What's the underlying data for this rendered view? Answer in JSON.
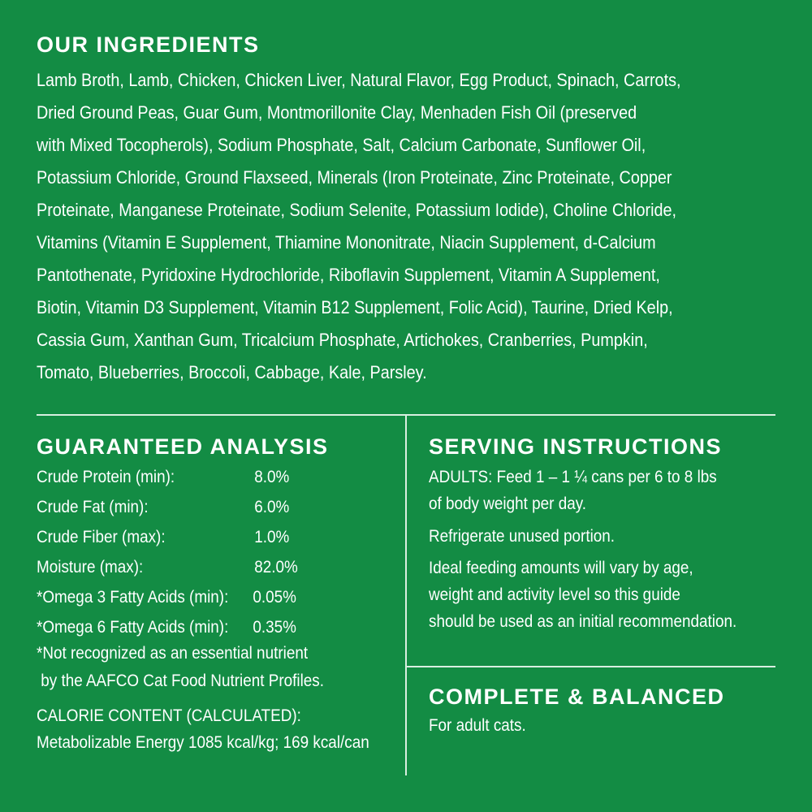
{
  "ingredients": {
    "title": "OUR INGREDIENTS",
    "lines": [
      "Lamb Broth, Lamb, Chicken, Chicken Liver, Natural Flavor, Egg Product, Spinach, Carrots,",
      "Dried Ground Peas, Guar Gum, Montmorillonite Clay, Menhaden Fish Oil (preserved",
      "with Mixed Tocopherols), Sodium Phosphate, Salt, Calcium Carbonate, Sunflower Oil,",
      "Potassium Chloride, Ground Flaxseed, Minerals (Iron Proteinate, Zinc Proteinate, Copper",
      "Proteinate, Manganese Proteinate, Sodium Selenite, Potassium Iodide), Choline Chloride,",
      "Vitamins (Vitamin E Supplement, Thiamine Mononitrate, Niacin Supplement, d-Calcium",
      "Pantothenate, Pyridoxine Hydrochloride, Riboflavin Supplement, Vitamin A Supplement,",
      "Biotin, Vitamin D3 Supplement, Vitamin B12 Supplement, Folic Acid), Taurine, Dried Kelp,",
      "Cassia Gum, Xanthan Gum, Tricalcium Phosphate, Artichokes, Cranberries, Pumpkin,",
      "Tomato, Blueberries, Broccoli, Cabbage, Kale, Parsley."
    ]
  },
  "analysis": {
    "title": "GUARANTEED ANALYSIS",
    "rows": [
      {
        "label": "Crude Protein (min):",
        "value": "8.0%"
      },
      {
        "label": "Crude Fat (min):",
        "value": "6.0%"
      },
      {
        "label": "Crude Fiber (max):",
        "value": "1.0%"
      },
      {
        "label": "Moisture (max):",
        "value": "82.0%"
      },
      {
        "label": "*Omega 3 Fatty Acids (min):",
        "value": "0.05%"
      },
      {
        "label": "*Omega 6 Fatty Acids (min):",
        "value": "0.35%"
      }
    ],
    "footnote": [
      "*Not recognized as an essential nutrient",
      " by the AAFCO Cat Food Nutrient Profiles."
    ],
    "calorie": [
      "CALORIE CONTENT (CALCULATED):",
      "Metabolizable Energy 1085 kcal/kg; 169 kcal/can"
    ]
  },
  "serving": {
    "title": "SERVING INSTRUCTIONS",
    "lines": [
      "ADULTS: Feed 1 – 1 ¼ cans per 6 to 8 lbs",
      "of body weight per day.",
      "Refrigerate unused portion.",
      "Ideal feeding amounts will vary by age,",
      "weight and activity level so this guide",
      "should be used as an initial recommendation."
    ]
  },
  "balanced": {
    "title": "COMPLETE & BALANCED",
    "text": "For adult cats."
  },
  "colors": {
    "background": "#138c44",
    "text": "#ffffff"
  }
}
